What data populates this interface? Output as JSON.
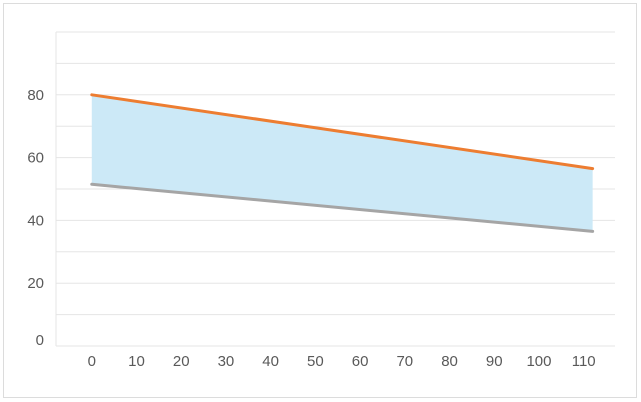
{
  "chart_data": {
    "type": "area",
    "title": "",
    "xlabel": "",
    "ylabel": "",
    "x_ticks": [
      0,
      10,
      20,
      30,
      40,
      50,
      60,
      70,
      80,
      90,
      100,
      110
    ],
    "y_ticks": [
      0,
      20,
      40,
      60,
      80
    ],
    "xlim": [
      -8,
      117
    ],
    "ylim": [
      0,
      100
    ],
    "grid": true,
    "legend": "none",
    "series": [
      {
        "values": [
          [
            0,
            80
          ],
          [
            112,
            56.5
          ]
        ],
        "color": "#ed7d31"
      },
      {
        "values": [
          [
            0,
            51.5
          ],
          [
            112,
            36.5
          ]
        ],
        "color": "#a5a5a5"
      }
    ],
    "band": {
      "between": [
        0,
        1
      ],
      "color": "#cce9f7"
    },
    "colors": {
      "grid": "#e5e5e5",
      "axis_text": "#595959"
    }
  }
}
